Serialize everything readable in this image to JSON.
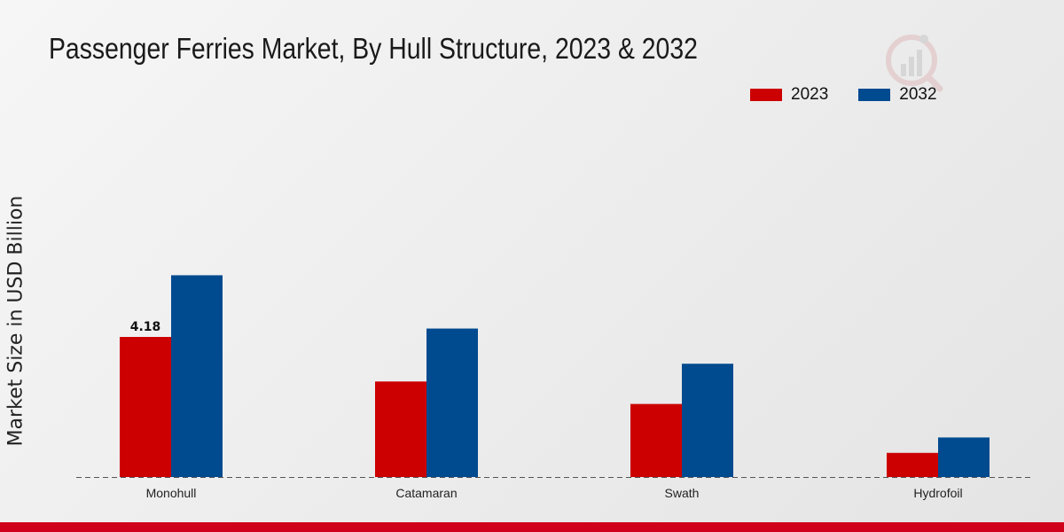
{
  "chart_data": {
    "type": "bar",
    "title": "Passenger Ferries Market, By Hull Structure, 2023 & 2032",
    "ylabel": "Market Size in USD Billion",
    "xlabel": "",
    "categories": [
      "Monohull",
      "Catamaran",
      "Swath",
      "Hydrofoil"
    ],
    "series": [
      {
        "name": "2023",
        "color": "#cc0000",
        "values": [
          4.18,
          2.85,
          2.18,
          0.72
        ]
      },
      {
        "name": "2032",
        "color": "#004a8f",
        "values": [
          6.02,
          4.43,
          3.38,
          1.18
        ]
      }
    ],
    "data_labels": [
      {
        "series": 0,
        "index": 0,
        "text": "4.18"
      }
    ],
    "ylim": [
      0,
      11
    ],
    "grid": false,
    "legend_position": "top-right"
  },
  "legend": {
    "items": [
      "2023",
      "2032"
    ]
  }
}
